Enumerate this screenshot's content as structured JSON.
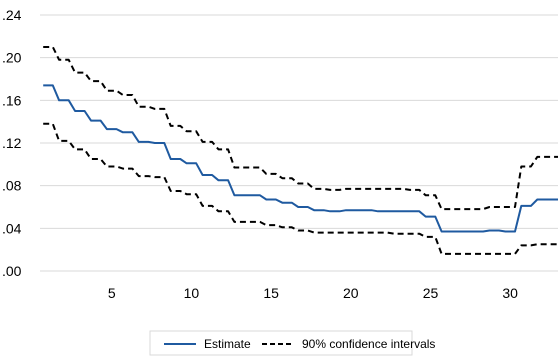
{
  "chart_data": {
    "type": "line",
    "x": [
      1,
      2,
      3,
      4,
      5,
      6,
      7,
      8,
      9,
      10,
      11,
      12,
      13,
      14,
      15,
      16,
      17,
      18,
      19,
      20,
      21,
      22,
      23,
      24,
      25,
      26,
      27,
      28,
      29,
      30,
      31,
      32,
      33
    ],
    "xlim": [
      0.5,
      33
    ],
    "xticks": [
      5,
      10,
      15,
      20,
      25,
      30
    ],
    "ylim": [
      0,
      0.24
    ],
    "yticks": [
      0,
      0.04,
      0.08,
      0.12,
      0.16,
      0.2,
      0.24
    ],
    "ytick_labels": [
      ".00",
      ".04",
      ".08",
      ".12",
      ".16",
      ".20",
      ".24"
    ],
    "grid": "horizontal",
    "series": [
      {
        "name": "Estimate",
        "style": "solid",
        "color": "#1f5aa0",
        "values": [
          0.174,
          0.16,
          0.15,
          0.141,
          0.133,
          0.13,
          0.121,
          0.12,
          0.105,
          0.101,
          0.09,
          0.085,
          0.071,
          0.071,
          0.067,
          0.064,
          0.06,
          0.057,
          0.056,
          0.057,
          0.057,
          0.056,
          0.056,
          0.056,
          0.051,
          0.037,
          0.037,
          0.037,
          0.038,
          0.037,
          0.061,
          0.067,
          0.067
        ]
      },
      {
        "name": "90% confidence intervals",
        "style": "dashed",
        "color": "#000000",
        "values": [
          0.21,
          0.198,
          0.186,
          0.178,
          0.169,
          0.165,
          0.154,
          0.152,
          0.136,
          0.131,
          0.121,
          0.114,
          0.097,
          0.097,
          0.091,
          0.087,
          0.082,
          0.077,
          0.076,
          0.077,
          0.077,
          0.077,
          0.077,
          0.076,
          0.071,
          0.058,
          0.058,
          0.058,
          0.06,
          0.06,
          0.098,
          0.107,
          0.107
        ]
      },
      {
        "name": "90% confidence intervals",
        "style": "dashed",
        "color": "#000000",
        "legend": false,
        "values": [
          0.138,
          0.122,
          0.114,
          0.105,
          0.098,
          0.096,
          0.089,
          0.088,
          0.075,
          0.072,
          0.061,
          0.056,
          0.046,
          0.046,
          0.043,
          0.041,
          0.038,
          0.036,
          0.036,
          0.036,
          0.036,
          0.036,
          0.035,
          0.035,
          0.032,
          0.016,
          0.016,
          0.016,
          0.016,
          0.016,
          0.024,
          0.025,
          0.025
        ]
      }
    ],
    "legend_position": "bottom"
  }
}
